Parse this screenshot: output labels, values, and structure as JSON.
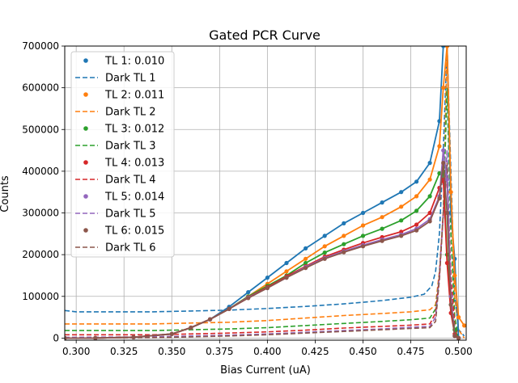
{
  "chart_data": {
    "type": "line",
    "title": "Gated PCR Curve",
    "xlabel": "Bias Current (uA)",
    "ylabel": "Counts",
    "xlim": [
      0.294,
      0.504
    ],
    "ylim": [
      -5000,
      700000
    ],
    "grid": true,
    "legend_position": "top-left",
    "xticks": [
      0.3,
      0.325,
      0.35,
      0.375,
      0.4,
      0.425,
      0.45,
      0.475,
      0.5
    ],
    "xtick_labels": [
      "0.300",
      "0.325",
      "0.350",
      "0.375",
      "0.400",
      "0.425",
      "0.450",
      "0.475",
      "0.500"
    ],
    "yticks": [
      0,
      100000,
      200000,
      300000,
      400000,
      500000,
      600000,
      700000
    ],
    "ytick_labels": [
      "0",
      "100000",
      "200000",
      "300000",
      "400000",
      "500000",
      "600000",
      "700000"
    ],
    "legend": [
      "TL 1: 0.010",
      "Dark TL 1",
      "TL 2: 0.011",
      "Dark TL 2",
      "TL 3: 0.012",
      "Dark TL 3",
      "TL 4: 0.013",
      "Dark TL 4",
      "TL 5: 0.014",
      "Dark TL 5",
      "TL 6: 0.015",
      "Dark TL 6"
    ],
    "colors": [
      "#1f77b4",
      "#ff7f0e",
      "#2ca02c",
      "#d62728",
      "#9467bd",
      "#8c564b"
    ],
    "light_series": [
      {
        "name": "TL 1: 0.010",
        "x": [
          0.294,
          0.31,
          0.33,
          0.35,
          0.36,
          0.37,
          0.38,
          0.39,
          0.4,
          0.41,
          0.42,
          0.43,
          0.44,
          0.45,
          0.46,
          0.47,
          0.478,
          0.485,
          0.49,
          0.492,
          0.494,
          0.496,
          0.498,
          0.5
        ],
        "y": [
          0,
          0,
          2000,
          10000,
          25000,
          45000,
          75000,
          110000,
          145000,
          180000,
          215000,
          245000,
          275000,
          300000,
          325000,
          350000,
          375000,
          420000,
          520000,
          700000,
          700000,
          300000,
          190000,
          0
        ]
      },
      {
        "name": "TL 2: 0.011",
        "x": [
          0.294,
          0.31,
          0.33,
          0.35,
          0.36,
          0.37,
          0.38,
          0.39,
          0.4,
          0.41,
          0.42,
          0.43,
          0.44,
          0.45,
          0.46,
          0.47,
          0.478,
          0.485,
          0.49,
          0.492,
          0.494,
          0.496,
          0.498,
          0.5,
          0.503
        ],
        "y": [
          0,
          0,
          2000,
          10000,
          25000,
          45000,
          70000,
          100000,
          130000,
          160000,
          190000,
          220000,
          245000,
          270000,
          290000,
          315000,
          340000,
          380000,
          460000,
          600000,
          700000,
          350000,
          150000,
          50000,
          30000
        ]
      },
      {
        "name": "TL 3: 0.012",
        "x": [
          0.294,
          0.31,
          0.33,
          0.35,
          0.36,
          0.37,
          0.38,
          0.39,
          0.4,
          0.41,
          0.42,
          0.43,
          0.44,
          0.45,
          0.46,
          0.47,
          0.478,
          0.485,
          0.49,
          0.492,
          0.494,
          0.496,
          0.498,
          0.5
        ],
        "y": [
          0,
          0,
          2000,
          10000,
          25000,
          45000,
          70000,
          100000,
          125000,
          150000,
          180000,
          205000,
          225000,
          245000,
          262000,
          282000,
          305000,
          340000,
          395000,
          400000,
          200000,
          80000,
          20000,
          0
        ]
      },
      {
        "name": "TL 4: 0.013",
        "x": [
          0.294,
          0.31,
          0.33,
          0.35,
          0.36,
          0.37,
          0.38,
          0.39,
          0.4,
          0.41,
          0.42,
          0.43,
          0.44,
          0.45,
          0.46,
          0.47,
          0.478,
          0.485,
          0.49,
          0.492,
          0.494,
          0.496,
          0.498,
          0.5
        ],
        "y": [
          0,
          0,
          2000,
          10000,
          25000,
          45000,
          70000,
          98000,
          122000,
          148000,
          172000,
          195000,
          212000,
          228000,
          242000,
          255000,
          272000,
          300000,
          360000,
          380000,
          180000,
          60000,
          10000,
          0
        ]
      },
      {
        "name": "TL 5: 0.014",
        "x": [
          0.294,
          0.31,
          0.33,
          0.35,
          0.36,
          0.37,
          0.38,
          0.39,
          0.4,
          0.41,
          0.42,
          0.43,
          0.44,
          0.45,
          0.46,
          0.47,
          0.478,
          0.485,
          0.49,
          0.492,
          0.494,
          0.496,
          0.498,
          0.5
        ],
        "y": [
          0,
          0,
          2000,
          10000,
          25000,
          45000,
          70000,
          97000,
          120000,
          145000,
          170000,
          192000,
          208000,
          223000,
          236000,
          248000,
          262000,
          285000,
          340000,
          450000,
          380000,
          100000,
          5000,
          0
        ]
      },
      {
        "name": "TL 6: 0.015",
        "x": [
          0.294,
          0.31,
          0.33,
          0.35,
          0.36,
          0.37,
          0.38,
          0.39,
          0.4,
          0.41,
          0.42,
          0.43,
          0.44,
          0.45,
          0.46,
          0.47,
          0.478,
          0.485,
          0.49,
          0.492,
          0.494,
          0.496,
          0.498,
          0.5
        ],
        "y": [
          0,
          0,
          2000,
          10000,
          25000,
          45000,
          70000,
          96000,
          120000,
          145000,
          168000,
          190000,
          206000,
          220000,
          233000,
          245000,
          258000,
          280000,
          335000,
          420000,
          300000,
          80000,
          5000,
          0
        ]
      }
    ],
    "dark_series": [
      {
        "name": "Dark TL 1",
        "x": [
          0.294,
          0.3,
          0.34,
          0.36,
          0.38,
          0.4,
          0.42,
          0.44,
          0.46,
          0.475,
          0.482,
          0.486,
          0.488,
          0.49,
          0.492,
          0.494,
          0.496,
          0.498,
          0.5,
          0.503
        ],
        "y": [
          66000,
          63000,
          63000,
          65000,
          67000,
          71000,
          76000,
          82000,
          90000,
          98000,
          105000,
          125000,
          160000,
          250000,
          450000,
          700000,
          400000,
          100000,
          20000,
          5000
        ]
      },
      {
        "name": "Dark TL 2",
        "x": [
          0.294,
          0.3,
          0.34,
          0.36,
          0.38,
          0.4,
          0.42,
          0.44,
          0.46,
          0.475,
          0.485,
          0.488,
          0.49,
          0.492,
          0.494,
          0.496,
          0.498,
          0.5,
          0.503
        ],
        "y": [
          34000,
          34000,
          34000,
          36000,
          38000,
          42000,
          48000,
          54000,
          59000,
          63000,
          68000,
          80000,
          160000,
          300000,
          700000,
          350000,
          100000,
          20000,
          0
        ]
      },
      {
        "name": "Dark TL 3",
        "x": [
          0.294,
          0.3,
          0.34,
          0.36,
          0.38,
          0.4,
          0.42,
          0.44,
          0.46,
          0.475,
          0.485,
          0.488,
          0.49,
          0.492,
          0.494,
          0.496,
          0.498,
          0.5
        ],
        "y": [
          18000,
          18000,
          18000,
          20000,
          22000,
          25000,
          30000,
          35000,
          40000,
          44000,
          48000,
          70000,
          150000,
          300000,
          600000,
          250000,
          50000,
          0
        ]
      },
      {
        "name": "Dark TL 4",
        "x": [
          0.294,
          0.3,
          0.34,
          0.36,
          0.38,
          0.4,
          0.42,
          0.44,
          0.46,
          0.475,
          0.485,
          0.488,
          0.49,
          0.492,
          0.494,
          0.496,
          0.498,
          0.5
        ],
        "y": [
          8000,
          8000,
          8000,
          10000,
          12000,
          15000,
          19000,
          24000,
          28000,
          31000,
          34000,
          60000,
          150000,
          300000,
          400000,
          150000,
          30000,
          0
        ]
      },
      {
        "name": "Dark TL 5",
        "x": [
          0.294,
          0.3,
          0.34,
          0.36,
          0.38,
          0.4,
          0.42,
          0.44,
          0.46,
          0.475,
          0.485,
          0.488,
          0.49,
          0.492,
          0.494,
          0.496,
          0.498,
          0.5
        ],
        "y": [
          2000,
          2000,
          3000,
          5000,
          7000,
          10000,
          14000,
          18000,
          22000,
          26000,
          28000,
          50000,
          150000,
          300000,
          450000,
          100000,
          10000,
          0
        ]
      },
      {
        "name": "Dark TL 6",
        "x": [
          0.294,
          0.3,
          0.34,
          0.36,
          0.38,
          0.4,
          0.42,
          0.44,
          0.46,
          0.475,
          0.485,
          0.488,
          0.49,
          0.492,
          0.494,
          0.496,
          0.498,
          0.5
        ],
        "y": [
          0,
          0,
          1000,
          3000,
          5000,
          8000,
          12000,
          16000,
          20000,
          23000,
          25000,
          40000,
          140000,
          300000,
          420000,
          80000,
          5000,
          0
        ]
      }
    ]
  }
}
